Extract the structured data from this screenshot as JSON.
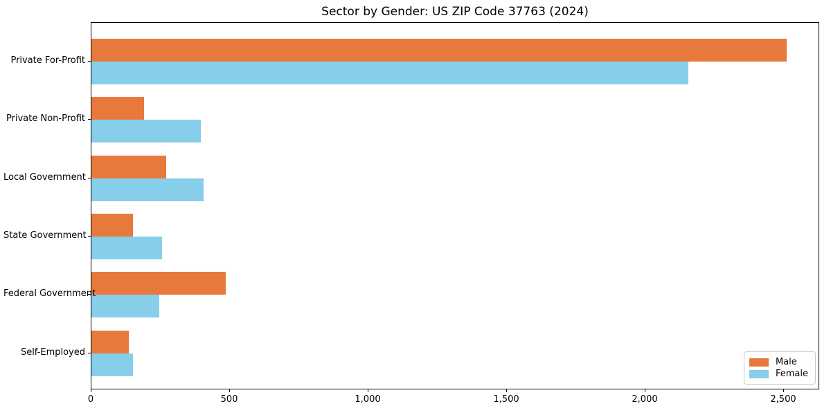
{
  "chart_data": {
    "type": "bar",
    "orientation": "horizontal",
    "title": "Sector by Gender: US ZIP Code 37763 (2024)",
    "categories": [
      "Private For-Profit",
      "Private Non-Profit",
      "Local Government",
      "State Government",
      "Federal Government",
      "Self-Employed"
    ],
    "series": [
      {
        "name": "Male",
        "color": "#e8793c",
        "values": [
          2510,
          190,
          270,
          150,
          485,
          135
        ]
      },
      {
        "name": "Female",
        "color": "#87ceeb",
        "values": [
          2155,
          395,
          405,
          255,
          245,
          150
        ]
      }
    ],
    "xlabel": "",
    "ylabel": "",
    "xlim": [
      0,
      2630
    ],
    "xticks": [
      0,
      500,
      1000,
      1500,
      2000,
      2500
    ],
    "xtick_labels": [
      "0",
      "500",
      "1,000",
      "1,500",
      "2,000",
      "2,500"
    ],
    "grid": false,
    "legend": {
      "position": "lower right"
    }
  }
}
